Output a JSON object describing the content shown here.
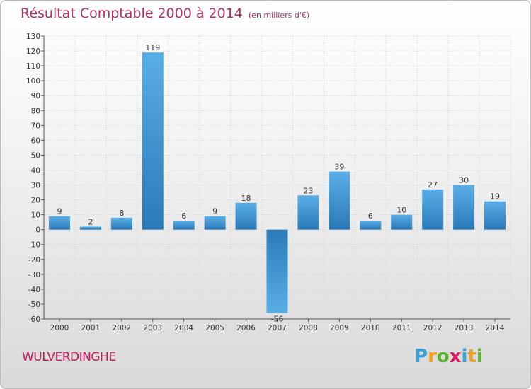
{
  "title": "Résultat Comptable 2000 à 2014",
  "unit": "(en milliers d'€)",
  "town": "WULVERDINGHE",
  "logo": {
    "letters": [
      "P",
      "r",
      "o",
      "x",
      "i",
      "t",
      "i"
    ],
    "colors": [
      "#3aa0d8",
      "#f0a020",
      "#5cb030",
      "#d81b60",
      "#3aa0d8",
      "#f0a020",
      "#5cb030"
    ]
  },
  "colors": {
    "title": "#b03060",
    "bar_light": "#5aaee6",
    "bar_dark": "#2a7ab8",
    "grid": "#d0d0d0"
  },
  "chart_data": {
    "type": "bar",
    "categories": [
      "2000",
      "2001",
      "2002",
      "2003",
      "2004",
      "2005",
      "2006",
      "2007",
      "2008",
      "2009",
      "2010",
      "2011",
      "2012",
      "2013",
      "2014"
    ],
    "values": [
      9,
      2,
      8,
      119,
      6,
      9,
      18,
      -56,
      23,
      39,
      6,
      10,
      27,
      30,
      19
    ],
    "data_labels": [
      "9",
      "2",
      "8",
      "119",
      "6",
      "9",
      "18",
      "-56",
      "23",
      "39",
      "6",
      "10",
      "27",
      "30",
      "19"
    ],
    "ylim": [
      -60,
      130
    ],
    "yticks": [
      130,
      120,
      110,
      100,
      90,
      80,
      70,
      60,
      50,
      40,
      30,
      20,
      10,
      0,
      -10,
      -20,
      -30,
      -40,
      -50,
      -60
    ],
    "ytick_labels": [
      "130",
      "120",
      "110",
      "100",
      "90",
      "80",
      "70",
      "60",
      "50",
      "40",
      "30",
      "20",
      "10",
      "0",
      "-10",
      "-20",
      "-30",
      "-40",
      "-50",
      "-60"
    ],
    "grid": true,
    "legend": "none"
  }
}
